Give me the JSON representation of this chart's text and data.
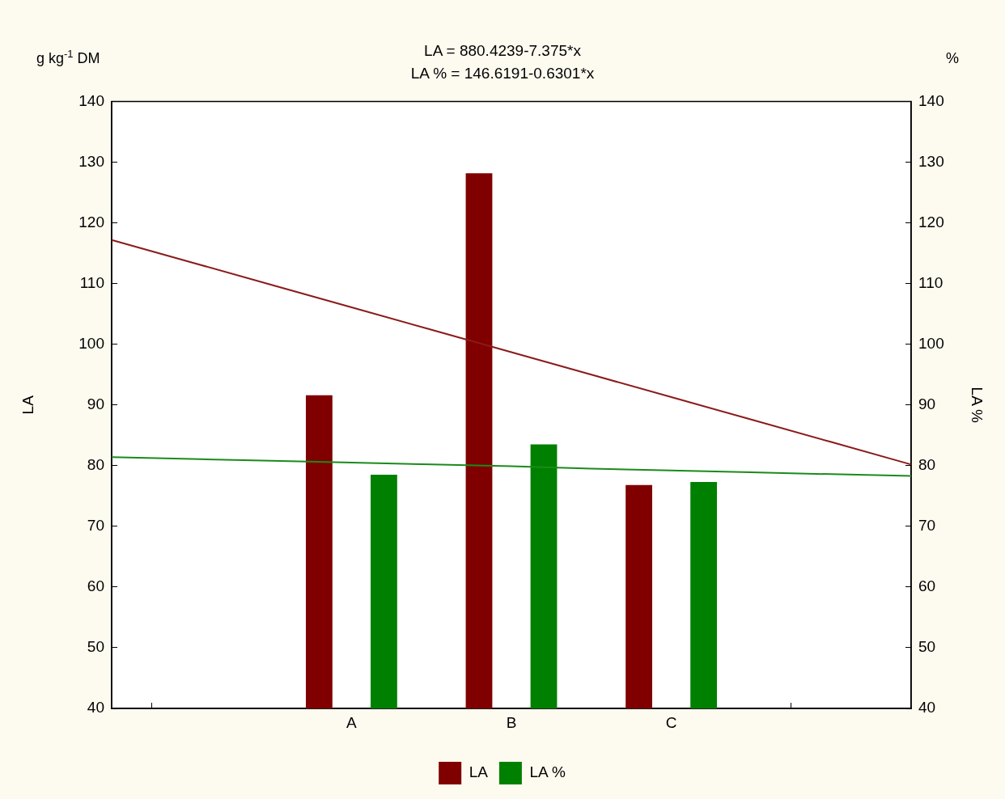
{
  "chart_data": {
    "type": "bar",
    "title": "LA = 880.4239-7.375*x",
    "subtitle": "LA % = 146.6191-0.6301*x",
    "ylabel": "LA",
    "y2label": "LA %",
    "annotations": [
      "g kg$^{-1}$ DM",
      "%"
    ],
    "categories": [
      null,
      null,
      null,
      "A",
      null,
      "B",
      null,
      "C",
      null,
      null,
      null
    ],
    "series": [
      {
        "name": "LA",
        "color": "#800000",
        "values": [
          null,
          null,
          null,
          91.6,
          null,
          128.2,
          null,
          76.8,
          null,
          null,
          null
        ]
      },
      {
        "name": "LA %",
        "color": "#008000",
        "values": [
          null,
          null,
          null,
          78.5,
          null,
          83.5,
          null,
          77.3,
          null,
          null,
          null
        ]
      },
      {
        "type": "line",
        "color": "#8b1a1a",
        "values": [
          117.2,
          113.5,
          109.8,
          106.1,
          102.4,
          98.7,
          95.0,
          91.3,
          87.6,
          83.9,
          80.2
        ]
      },
      {
        "type": "line",
        "color": "#1a8b1a",
        "values": [
          81.4,
          81.1,
          80.8,
          80.5,
          80.2,
          79.9,
          79.5,
          79.2,
          78.9,
          78.6,
          78.3
        ]
      }
    ],
    "ylim": [
      40,
      140
    ],
    "yticks": [
      40,
      50,
      60,
      70,
      80,
      90,
      100,
      110,
      120,
      130,
      140
    ],
    "y2lim": [
      40,
      140
    ],
    "y2ticks": [
      40,
      50,
      60,
      70,
      80,
      90,
      100,
      110,
      120,
      130,
      140
    ],
    "grid": false,
    "legend": "bottom",
    "marker": "none"
  }
}
